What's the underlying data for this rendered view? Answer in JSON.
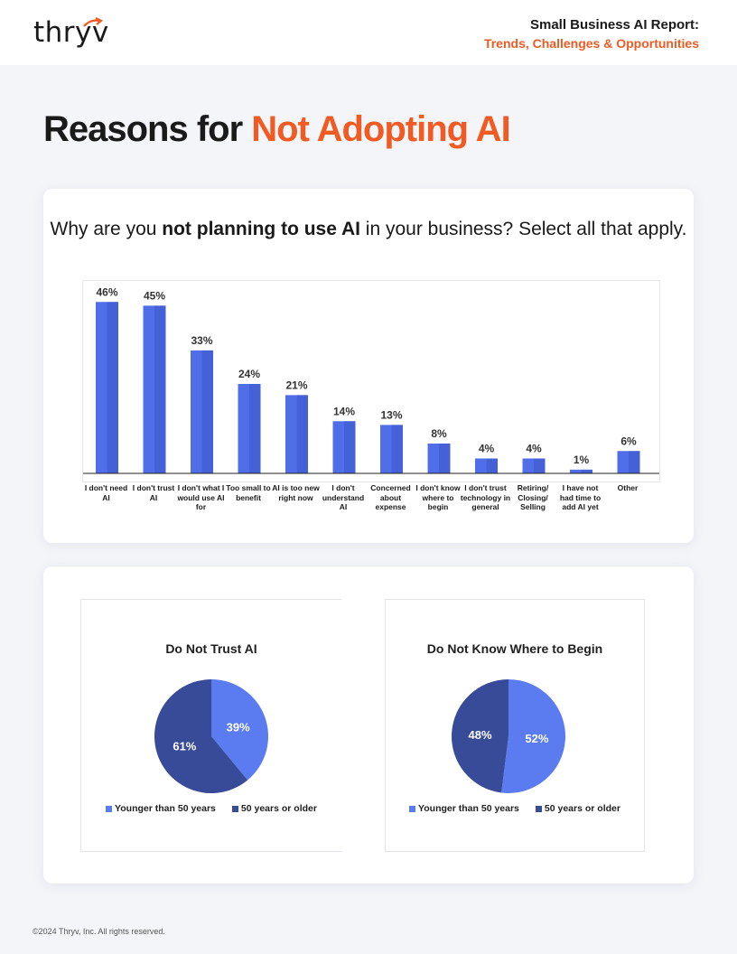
{
  "header": {
    "logo_text": "thryv",
    "report_title_line1": "Small Business AI Report:",
    "report_title_line2": "Trends, Challenges & Opportunities"
  },
  "page_title": {
    "part1": "Reasons for ",
    "part2": "Not Adopting AI"
  },
  "question": {
    "part1": "Why are you ",
    "bold": "not planning to use AI",
    "part2": " in your business? Select all that apply."
  },
  "colors": {
    "accent": "#f15a22",
    "bar": "#4f6ee8",
    "bar_dark": "#3d58c8",
    "younger": "#5b7cf0",
    "older": "#384b99"
  },
  "chart_data": [
    {
      "type": "bar",
      "categories": [
        "I don't need AI",
        "I don't trust AI",
        "I don't what I would use AI for",
        "Too small to benefit",
        "AI is too new right now",
        "I don't understand AI",
        "Concerned about expense",
        "I don't know where to begin",
        "I don't trust technology in general",
        "Retiring/ Closing/ Selling",
        "I have not had time to add AI yet",
        "Other"
      ],
      "values": [
        46,
        45,
        33,
        24,
        21,
        14,
        13,
        8,
        4,
        4,
        1,
        6
      ],
      "value_labels": [
        "46%",
        "45%",
        "33%",
        "24%",
        "21%",
        "14%",
        "13%",
        "8%",
        "4%",
        "4%",
        "1%",
        "6%"
      ],
      "ylim": [
        0,
        48
      ],
      "grid": false
    },
    {
      "type": "pie",
      "title": "Do Not Trust AI",
      "labels": [
        "Younger than 50 years",
        "50 years or older"
      ],
      "values": [
        39,
        61
      ],
      "value_labels": [
        "39%",
        "61%"
      ],
      "legend": "bottom"
    },
    {
      "type": "pie",
      "title": "Do Not Know Where to Begin",
      "labels": [
        "Younger than 50 years",
        "50 years or older"
      ],
      "values": [
        52,
        48
      ],
      "value_labels": [
        "52%",
        "48%"
      ],
      "legend": "bottom"
    }
  ],
  "footer": {
    "copyright": "©2024 Thryv, Inc. All rights reserved."
  }
}
